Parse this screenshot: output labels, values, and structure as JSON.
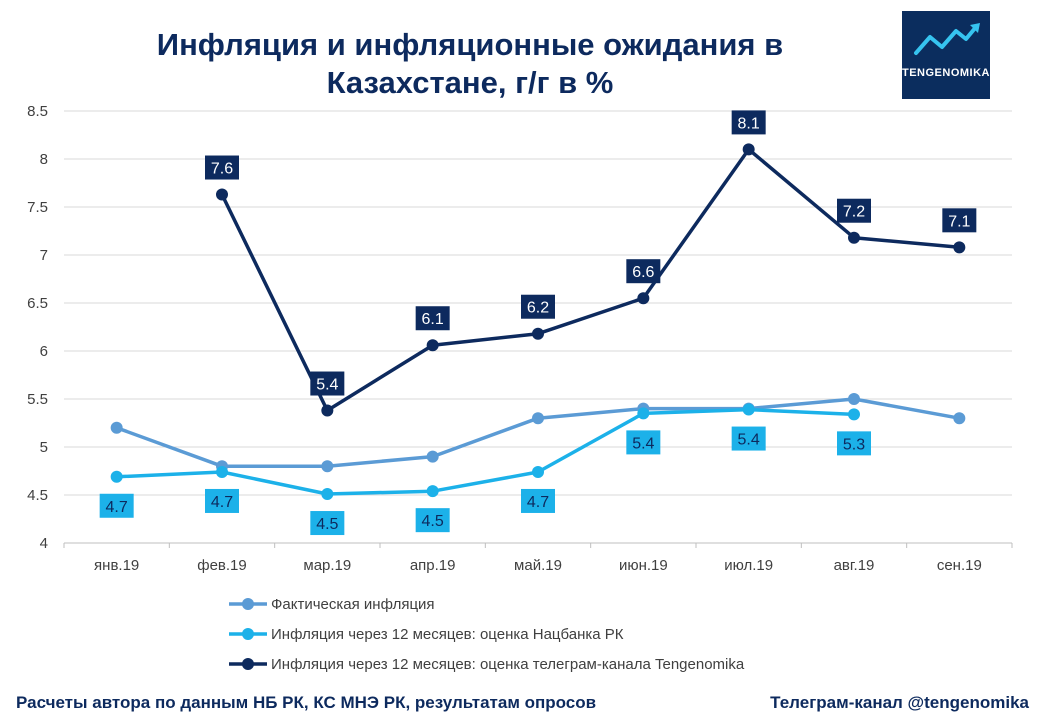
{
  "title_line1": "Инфляция и инфляционные ожидания в",
  "title_line2": "Казахстане, г/г в %",
  "logo": {
    "text": "TENGENOMIKA",
    "bg_color": "#0b2d5e"
  },
  "footer": {
    "left": "Расчеты автора по данным НБ РК, КС МНЭ РК, результатам опросов",
    "right": "Телеграм-канал @tengenomika"
  },
  "chart_data": {
    "type": "line",
    "categories": [
      "янв.19",
      "фев.19",
      "мар.19",
      "апр.19",
      "май.19",
      "июн.19",
      "июл.19",
      "авг.19",
      "сен.19"
    ],
    "ylim": [
      4,
      8.5
    ],
    "yticks": [
      "4",
      "4.5",
      "5",
      "5.5",
      "6",
      "6.5",
      "7",
      "7.5",
      "8",
      "8.5"
    ],
    "grid": true,
    "legend_position": "bottom",
    "series": [
      {
        "name": "Фактическая инфляция",
        "color": "#5b9bd5",
        "values": [
          5.2,
          4.8,
          4.8,
          4.9,
          5.3,
          5.4,
          5.4,
          5.5,
          5.3
        ],
        "labels": [
          null,
          null,
          null,
          null,
          null,
          null,
          null,
          null,
          null
        ]
      },
      {
        "name": "Инфляция через 12 месяцев: оценка Нацбанка РК",
        "color": "#1cb1e9",
        "values": [
          4.69,
          4.74,
          4.51,
          4.54,
          4.74,
          5.35,
          5.39,
          5.34,
          null
        ],
        "labels": [
          "4.7",
          "4.7",
          "4.5",
          "4.5",
          "4.7",
          "5.4",
          "5.4",
          "5.3",
          null
        ]
      },
      {
        "name": "Инфляция через 12 месяцев: оценка телеграм-канала Tengenomika",
        "color": "#0d2a5e",
        "values": [
          null,
          7.63,
          5.38,
          6.06,
          6.18,
          6.55,
          8.1,
          7.18,
          7.08
        ],
        "labels": [
          null,
          "7.6",
          "5.4",
          "6.1",
          "6.2",
          "6.6",
          "8.1",
          "7.2",
          "7.1"
        ]
      }
    ]
  }
}
